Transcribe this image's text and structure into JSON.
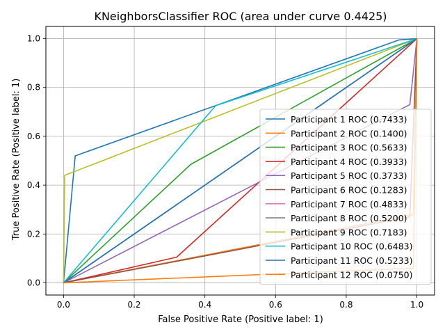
{
  "chart_data": {
    "type": "line",
    "title": "KNeighborsClassifier ROC (area under curve 0.4425)",
    "xlabel": "False Positive Rate (Positive label: 1)",
    "ylabel": "True Positive Rate (Positive label: 1)",
    "xlim": [
      -0.05,
      1.05
    ],
    "ylim": [
      -0.05,
      1.05
    ],
    "xticks": [
      0.0,
      0.2,
      0.4,
      0.6,
      0.8,
      1.0
    ],
    "yticks": [
      0.0,
      0.2,
      0.4,
      0.6,
      0.8,
      1.0
    ],
    "xtick_labels": [
      "0.0",
      "0.2",
      "0.4",
      "0.6",
      "0.8",
      "1.0"
    ],
    "ytick_labels": [
      "0.0",
      "0.2",
      "0.4",
      "0.6",
      "0.8",
      "1.0"
    ],
    "grid": true,
    "legend_position": "lower-right",
    "series": [
      {
        "name": "Participant 1 ROC (0.7433)",
        "color": "#1f77b4",
        "x": [
          0,
          0.033,
          0.95,
          1.0
        ],
        "y": [
          0,
          0.52,
          0.995,
          1.0
        ]
      },
      {
        "name": "Participant 2 ROC (0.1400)",
        "color": "#ff7f0e",
        "x": [
          0,
          0.99,
          1.0
        ],
        "y": [
          0,
          0.28,
          1.0
        ]
      },
      {
        "name": "Participant 3 ROC (0.5633)",
        "color": "#2ca02c",
        "x": [
          0,
          0.36,
          1.0
        ],
        "y": [
          0,
          0.485,
          1.0
        ]
      },
      {
        "name": "Participant 4 ROC (0.3933)",
        "color": "#d62728",
        "x": [
          0,
          0.32,
          1.0
        ],
        "y": [
          0,
          0.105,
          1.0
        ]
      },
      {
        "name": "Participant 5 ROC (0.3733)",
        "color": "#9467bd",
        "x": [
          0,
          0.98,
          1.0
        ],
        "y": [
          0,
          0.73,
          1.0
        ]
      },
      {
        "name": "Participant 6 ROC (0.1283)",
        "color": "#8c564b",
        "x": [
          0,
          0.98,
          1.0
        ],
        "y": [
          0,
          0.27,
          1.0
        ]
      },
      {
        "name": "Participant 7 ROC (0.4833)",
        "color": "#e377c2",
        "x": [
          0,
          1.0
        ],
        "y": [
          0,
          1.0
        ]
      },
      {
        "name": "Participant 8 ROC (0.5200)",
        "color": "#7f7f7f",
        "x": [
          0,
          1.0
        ],
        "y": [
          0,
          1.0
        ]
      },
      {
        "name": "Participant 9 ROC (0.7183)",
        "color": "#bcbd22",
        "x": [
          0,
          0.003,
          1.0
        ],
        "y": [
          0,
          0.44,
          1.0
        ]
      },
      {
        "name": "Participant 10 ROC (0.6483)",
        "color": "#17becf",
        "x": [
          0,
          0.43,
          1.0
        ],
        "y": [
          0,
          0.725,
          1.0
        ]
      },
      {
        "name": "Participant 11 ROC (0.5233)",
        "color": "#1f77b4",
        "x": [
          0,
          1.0
        ],
        "y": [
          0,
          1.0
        ]
      },
      {
        "name": "Participant 12 ROC (0.0750)",
        "color": "#ff7f0e",
        "x": [
          0,
          0.99,
          1.0
        ],
        "y": [
          0,
          0.06,
          1.0
        ]
      }
    ]
  }
}
